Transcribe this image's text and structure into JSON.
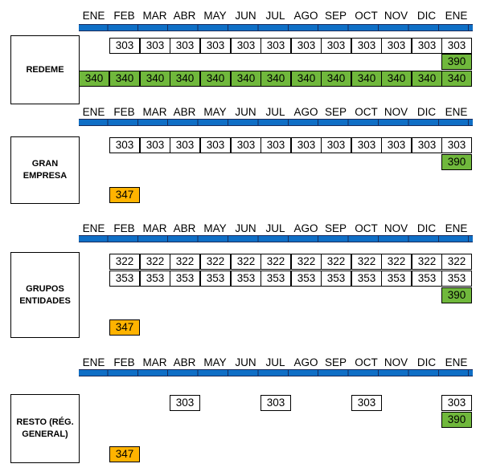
{
  "months": [
    "ENE",
    "FEB",
    "MAR",
    "ABR",
    "MAY",
    "JUN",
    "JUL",
    "AGO",
    "SEP",
    "OCT",
    "NOV",
    "DIC",
    "ENE"
  ],
  "sections": [
    {
      "label": "REDEME",
      "rows": [
        {
          "kind": "white",
          "values": [
            "303",
            "303",
            "303",
            "303",
            "303",
            "303",
            "303",
            "303",
            "303",
            "303",
            "303",
            "303"
          ]
        },
        {
          "kind": "green_single",
          "value": "390"
        },
        {
          "kind": "green",
          "values": [
            "340",
            "340",
            "340",
            "340",
            "340",
            "340",
            "340",
            "340",
            "340",
            "340",
            "340",
            "340",
            "340"
          ]
        }
      ]
    },
    {
      "label": "GRAN EMPRESA",
      "rows": [
        {
          "kind": "white",
          "values": [
            "303",
            "303",
            "303",
            "303",
            "303",
            "303",
            "303",
            "303",
            "303",
            "303",
            "303",
            "303"
          ]
        },
        {
          "kind": "green_single",
          "value": "390"
        },
        {
          "kind": "orange_single",
          "value": "347"
        }
      ]
    },
    {
      "label": "GRUPOS ENTIDADES",
      "rows": [
        {
          "kind": "white",
          "values": [
            "322",
            "322",
            "322",
            "322",
            "322",
            "322",
            "322",
            "322",
            "322",
            "322",
            "322",
            "322"
          ]
        },
        {
          "kind": "white",
          "values": [
            "353",
            "353",
            "353",
            "353",
            "353",
            "353",
            "353",
            "353",
            "353",
            "353",
            "353",
            "353"
          ]
        },
        {
          "kind": "green_single",
          "value": "390"
        },
        {
          "kind": "orange_single",
          "value": "347"
        }
      ]
    },
    {
      "label": "RESTO (RÉG. GENERAL)",
      "rows": [
        {
          "kind": "sparse",
          "values": [
            "303",
            "303",
            "303",
            "303"
          ]
        },
        {
          "kind": "green_single",
          "value": "390"
        },
        {
          "kind": "orange_single",
          "value": "347"
        }
      ]
    }
  ],
  "colors": {
    "bar": "#0f6fc6",
    "green": "#70b83c",
    "orange": "#ffb300"
  }
}
